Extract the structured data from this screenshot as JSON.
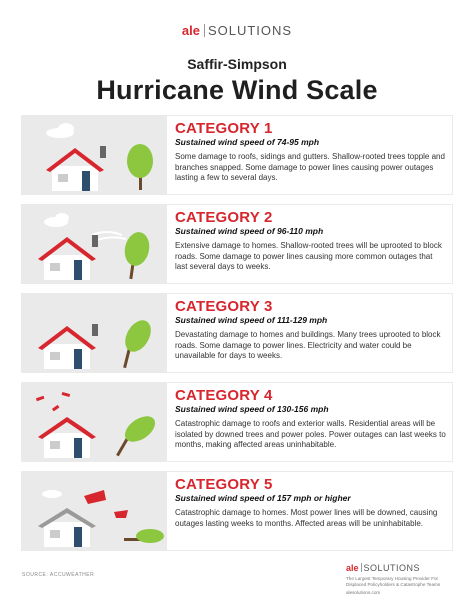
{
  "brand": {
    "ale": "ale",
    "solutions": "SOLUTIONS"
  },
  "header": {
    "subtitle": "Saffir-Simpson",
    "title": "Hurricane Wind Scale"
  },
  "categories": [
    {
      "title": "CATEGORY 1",
      "speed": "Sustained wind speed of 74-95 mph",
      "description": "Some damage to roofs, sidings and gutters. Shallow-rooted trees topple and branches snapped. Some damage to power lines causing power outages lasting a few to several days."
    },
    {
      "title": "CATEGORY 2",
      "speed": "Sustained wind speed of 96-110 mph",
      "description": "Extensive damage to homes. Shallow-rooted trees will be uprooted to block roads. Some damage to power lines causing more common outages that last several days to weeks."
    },
    {
      "title": "CATEGORY 3",
      "speed": "Sustained wind speed of 111-129 mph",
      "description": "Devastating damage to homes and buildings. Many trees uprooted to block roads. Some damage to power lines. Electricity and water could be unavailable for days to weeks."
    },
    {
      "title": "CATEGORY 4",
      "speed": "Sustained wind speed of 130-156 mph",
      "description": "Catastrophic damage to roofs and exterior walls. Residential areas will be isolated by downed trees and power poles. Power outages can last weeks to months, making affected areas uninhabitable."
    },
    {
      "title": "CATEGORY 5",
      "speed": "Sustained wind speed of 157 mph or higher",
      "description": "Catastrophic damage to homes. Most power lines will be downed, causing outages lasting weeks to months. Affected areas will be uninhabitable."
    }
  ],
  "footer": {
    "source": "SOURCE: ACCUWEATHER",
    "tagline": "The Largest Temporary Housing Provider For Displaced Policyholders & Catastrophe Teams",
    "url": "alesolutions.com"
  },
  "colors": {
    "accent": "#d7262e",
    "card_art_bg": "#eaeaea",
    "tree": "#8dc63f",
    "house_wall": "#ffffff",
    "door": "#2e4e6e"
  }
}
